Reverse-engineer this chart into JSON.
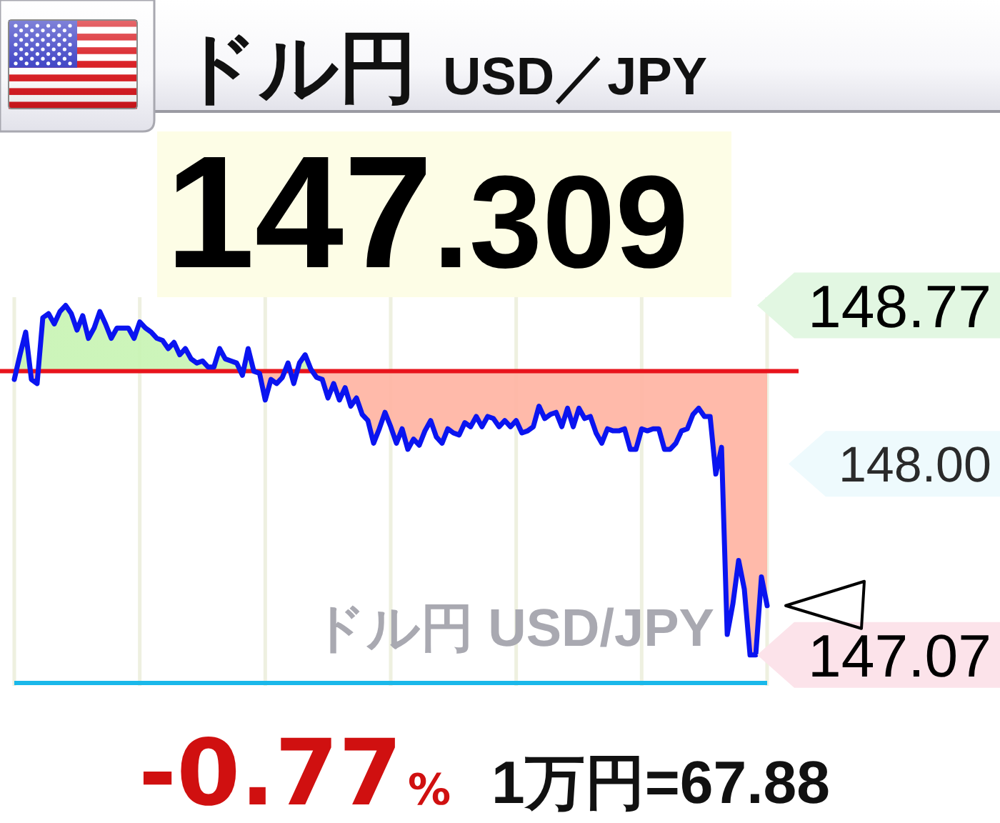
{
  "chart_data": {
    "type": "area",
    "title": "ドル円 USD／JPY",
    "subtitle": "147.309",
    "annotations": [
      "ドル円 USD/JPY",
      "-0.77%",
      "1万円=67.88"
    ],
    "categories": [
      null,
      null,
      null,
      null,
      null,
      null,
      null,
      null,
      null,
      null,
      null,
      null,
      null,
      null,
      null,
      null,
      null,
      null,
      null,
      null,
      null,
      null,
      null,
      null,
      null,
      null,
      null,
      null,
      null,
      null,
      null,
      null,
      null,
      null,
      null,
      null,
      null,
      null,
      null,
      null,
      null,
      null,
      null,
      null,
      null,
      null,
      null,
      null,
      null,
      null,
      null,
      null,
      null,
      null,
      null,
      null,
      null,
      null,
      null,
      null,
      null,
      null,
      null,
      null,
      null,
      null,
      null,
      null,
      null,
      null,
      null,
      null,
      null,
      null,
      null,
      null,
      null,
      null,
      null,
      null,
      null,
      null,
      null,
      null,
      null,
      null,
      null,
      null,
      null,
      null,
      null,
      null,
      null,
      null,
      null,
      null,
      null,
      null,
      null,
      null,
      null,
      null,
      null,
      null,
      null,
      null,
      null,
      null,
      null,
      null,
      null,
      null,
      null,
      null,
      null,
      null,
      null,
      null,
      null,
      null,
      null,
      null,
      null,
      null,
      null,
      null,
      null,
      null,
      null,
      null,
      null,
      null,
      null
    ],
    "series": [
      {
        "color": "#0a14f0",
        "values": [
          148.41,
          148.53,
          148.64,
          148.41,
          148.39,
          148.71,
          148.73,
          148.68,
          148.74,
          148.77,
          148.73,
          148.65,
          148.72,
          148.61,
          148.66,
          148.74,
          148.68,
          148.61,
          148.66,
          148.66,
          148.66,
          148.61,
          148.69,
          148.66,
          148.64,
          148.61,
          148.6,
          148.56,
          148.59,
          148.53,
          148.56,
          148.51,
          148.49,
          148.5,
          148.47,
          148.47,
          148.56,
          148.51,
          148.5,
          148.49,
          148.43,
          148.56,
          148.45,
          148.44,
          148.31,
          148.41,
          148.39,
          148.42,
          148.49,
          148.39,
          148.49,
          148.53,
          148.46,
          148.42,
          148.41,
          148.32,
          148.39,
          148.31,
          148.37,
          148.28,
          148.32,
          148.24,
          148.21,
          148.1,
          148.17,
          148.25,
          148.18,
          148.1,
          148.17,
          148.07,
          148.12,
          148.09,
          148.16,
          148.21,
          148.13,
          148.1,
          148.17,
          148.15,
          148.14,
          148.2,
          148.18,
          148.23,
          148.18,
          148.23,
          148.22,
          148.18,
          148.21,
          148.18,
          148.21,
          148.15,
          148.16,
          148.18,
          148.28,
          148.22,
          148.24,
          148.25,
          148.18,
          148.27,
          148.18,
          148.27,
          148.22,
          148.23,
          148.15,
          148.1,
          148.17,
          148.16,
          148.16,
          148.17,
          148.07,
          148.07,
          148.17,
          148.16,
          148.17,
          148.17,
          148.07,
          148.07,
          148.1,
          148.16,
          148.17,
          148.24,
          148.27,
          148.23,
          148.23,
          147.95,
          148.08,
          147.17,
          147.32,
          147.53,
          147.39,
          147.07,
          147.07,
          147.45,
          147.31
        ]
      }
    ],
    "ylim": [
      146.92,
      148.81
    ],
    "yticks": [
      {
        "value": 147.07,
        "label": "147.07"
      },
      {
        "value": 148,
        "label": "148.00"
      },
      {
        "value": 148.77,
        "label": "148.77"
      }
    ],
    "ref_lines": [
      {
        "axis": "y",
        "value": 148.45,
        "color": "#e8141c"
      }
    ],
    "grid": "x",
    "tick_labels": "y"
  }
}
